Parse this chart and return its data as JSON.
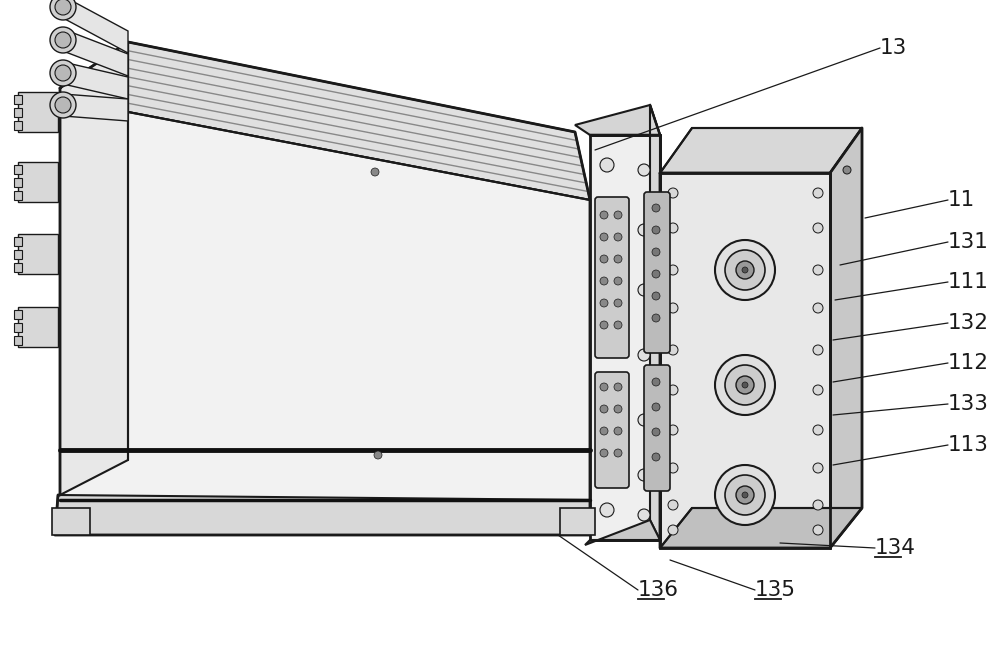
{
  "bg_color": "#ffffff",
  "lc": "#1a1a1a",
  "figsize": [
    10.0,
    6.55
  ],
  "dpi": 100,
  "annotations": [
    [
      "13",
      false,
      880,
      48,
      595,
      150
    ],
    [
      "11",
      false,
      948,
      200,
      865,
      218
    ],
    [
      "131",
      false,
      948,
      242,
      840,
      265
    ],
    [
      "111",
      false,
      948,
      282,
      835,
      300
    ],
    [
      "132",
      false,
      948,
      323,
      833,
      340
    ],
    [
      "112",
      false,
      948,
      363,
      833,
      382
    ],
    [
      "133",
      false,
      948,
      404,
      833,
      415
    ],
    [
      "113",
      false,
      948,
      445,
      833,
      465
    ],
    [
      "134",
      true,
      875,
      548,
      780,
      543
    ],
    [
      "135",
      true,
      755,
      590,
      670,
      560
    ],
    [
      "136",
      true,
      638,
      590,
      558,
      535
    ]
  ]
}
